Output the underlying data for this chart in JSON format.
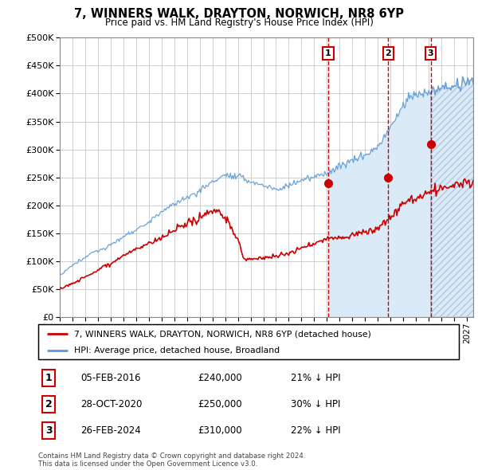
{
  "title1": "7, WINNERS WALK, DRAYTON, NORWICH, NR8 6YP",
  "title2": "Price paid vs. HM Land Registry's House Price Index (HPI)",
  "legend_label_red": "7, WINNERS WALK, DRAYTON, NORWICH, NR8 6YP (detached house)",
  "legend_label_blue": "HPI: Average price, detached house, Broadland",
  "transactions": [
    {
      "num": 1,
      "date": "05-FEB-2016",
      "price": 240000,
      "pct": "21% ↓ HPI",
      "year": 2016.1
    },
    {
      "num": 2,
      "date": "28-OCT-2020",
      "price": 250000,
      "pct": "30% ↓ HPI",
      "year": 2020.83
    },
    {
      "num": 3,
      "date": "26-FEB-2024",
      "price": 310000,
      "pct": "22% ↓ HPI",
      "year": 2024.15
    }
  ],
  "footnote1": "Contains HM Land Registry data © Crown copyright and database right 2024.",
  "footnote2": "This data is licensed under the Open Government Licence v3.0.",
  "ylim": [
    0,
    500000
  ],
  "xlim_start": 1995.0,
  "xlim_end": 2027.5,
  "hpi_fill_color": "#daeaf7",
  "price_color": "#cc0000",
  "dashed_color": "#cc0000",
  "hpi_line_color": "#5b9bd5",
  "background_color": "#ffffff",
  "grid_color": "#c8c8c8",
  "shade_start_year": 2016.1
}
